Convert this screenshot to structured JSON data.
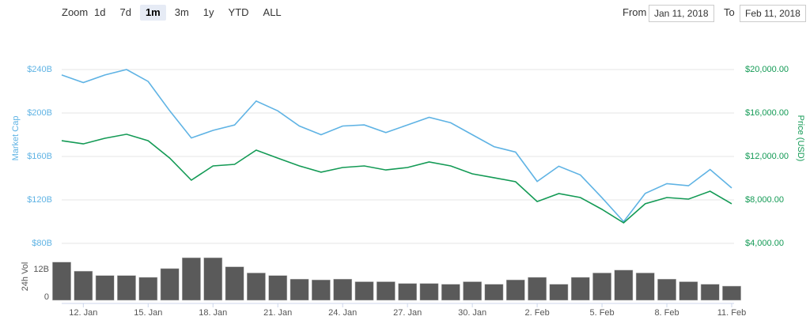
{
  "range_selector": {
    "zoom_label": "Zoom",
    "zoom_options": [
      "1d",
      "7d",
      "1m",
      "3m",
      "1y",
      "YTD",
      "ALL"
    ],
    "selected": 2,
    "from_label": "From",
    "from": "Jan 11, 2018",
    "to_label": "To",
    "to": "Feb 11, 2018"
  },
  "chart_data": [
    {
      "type": "line",
      "x": [
        "2018-01-11",
        "2018-01-12",
        "2018-01-13",
        "2018-01-14",
        "2018-01-15",
        "2018-01-16",
        "2018-01-17",
        "2018-01-18",
        "2018-01-19",
        "2018-01-20",
        "2018-01-21",
        "2018-01-22",
        "2018-01-23",
        "2018-01-24",
        "2018-01-25",
        "2018-01-26",
        "2018-01-27",
        "2018-01-28",
        "2018-01-29",
        "2018-01-30",
        "2018-01-31",
        "2018-02-01",
        "2018-02-02",
        "2018-02-03",
        "2018-02-04",
        "2018-02-05",
        "2018-02-06",
        "2018-02-07",
        "2018-02-08",
        "2018-02-09",
        "2018-02-10",
        "2018-02-11"
      ],
      "xlim": [
        "2018-01-11",
        "2018-02-11"
      ],
      "xticks": [
        {
          "value": "2018-01-12",
          "label": "12. Jan"
        },
        {
          "value": "2018-01-15",
          "label": "15. Jan"
        },
        {
          "value": "2018-01-18",
          "label": "18. Jan"
        },
        {
          "value": "2018-01-21",
          "label": "21. Jan"
        },
        {
          "value": "2018-01-24",
          "label": "24. Jan"
        },
        {
          "value": "2018-01-27",
          "label": "27. Jan"
        },
        {
          "value": "2018-01-30",
          "label": "30. Jan"
        },
        {
          "value": "2018-02-02",
          "label": "2. Feb"
        },
        {
          "value": "2018-02-05",
          "label": "5. Feb"
        },
        {
          "value": "2018-02-08",
          "label": "8. Feb"
        },
        {
          "value": "2018-02-11",
          "label": "11. Feb"
        }
      ],
      "ylabel": "Market Cap",
      "ylim": [
        80,
        250
      ],
      "yticks": [
        {
          "value": 80,
          "label": "$80B"
        },
        {
          "value": 120,
          "label": "$120B"
        },
        {
          "value": 160,
          "label": "$160B"
        },
        {
          "value": 200,
          "label": "$200B"
        },
        {
          "value": 240,
          "label": "$240B"
        }
      ],
      "y2label": "Price (USD)",
      "y2lim": [
        4000,
        21000
      ],
      "y2ticks": [
        {
          "value": 4000,
          "label": "$4,000.00"
        },
        {
          "value": 8000,
          "label": "$8,000.00"
        },
        {
          "value": 12000,
          "label": "$12,000.00"
        },
        {
          "value": 16000,
          "label": "$16,000.00"
        },
        {
          "value": 20000,
          "label": "$20,000.00"
        }
      ],
      "grid": true,
      "series": [
        {
          "name": "Market Cap",
          "color": "#5fb3e4",
          "values": [
            235,
            228,
            235,
            240,
            229,
            202,
            177,
            184,
            189,
            211,
            202,
            188,
            180,
            188,
            189,
            182,
            189,
            196,
            191,
            180,
            169,
            164,
            137,
            151,
            143,
            122,
            100,
            126,
            135,
            133,
            148,
            131
          ]
        },
        {
          "name": "Price (USD)",
          "color": "#139a55",
          "axis": "y2",
          "values": [
            13450,
            13160,
            13670,
            14040,
            13450,
            11850,
            9820,
            11130,
            11270,
            12580,
            11850,
            11130,
            10550,
            10980,
            11130,
            10760,
            10980,
            11490,
            11130,
            10400,
            10040,
            9670,
            7850,
            8580,
            8220,
            7130,
            5890,
            7640,
            8220,
            8070,
            8800,
            7640
          ]
        }
      ]
    },
    {
      "type": "bar",
      "x": [
        "2018-01-11",
        "2018-01-12",
        "2018-01-13",
        "2018-01-14",
        "2018-01-15",
        "2018-01-16",
        "2018-01-17",
        "2018-01-18",
        "2018-01-19",
        "2018-01-20",
        "2018-01-21",
        "2018-01-22",
        "2018-01-23",
        "2018-01-24",
        "2018-01-25",
        "2018-01-26",
        "2018-01-27",
        "2018-01-28",
        "2018-01-29",
        "2018-01-30",
        "2018-01-31",
        "2018-02-01",
        "2018-02-02",
        "2018-02-03",
        "2018-02-04",
        "2018-02-05",
        "2018-02-06",
        "2018-02-07",
        "2018-02-08",
        "2018-02-09",
        "2018-02-10",
        "2018-02-11"
      ],
      "xlim": [
        "2018-01-11",
        "2018-02-11"
      ],
      "ylabel": "24h Vol",
      "ylim": [
        0,
        17.8
      ],
      "yticks": [
        0,
        {
          "value": 12,
          "label": "12B"
        }
      ],
      "color": "#5a5a5a",
      "values": [
        14.8,
        11.3,
        9.6,
        9.6,
        8.9,
        12.3,
        16.5,
        16.5,
        13,
        10.6,
        9.6,
        8.2,
        7.9,
        8.2,
        7.2,
        7.2,
        6.5,
        6.5,
        6.2,
        7.2,
        6.2,
        7.9,
        8.9,
        6.2,
        8.9,
        10.6,
        11.7,
        10.6,
        8.2,
        7.2,
        6.2,
        5.5
      ]
    }
  ]
}
